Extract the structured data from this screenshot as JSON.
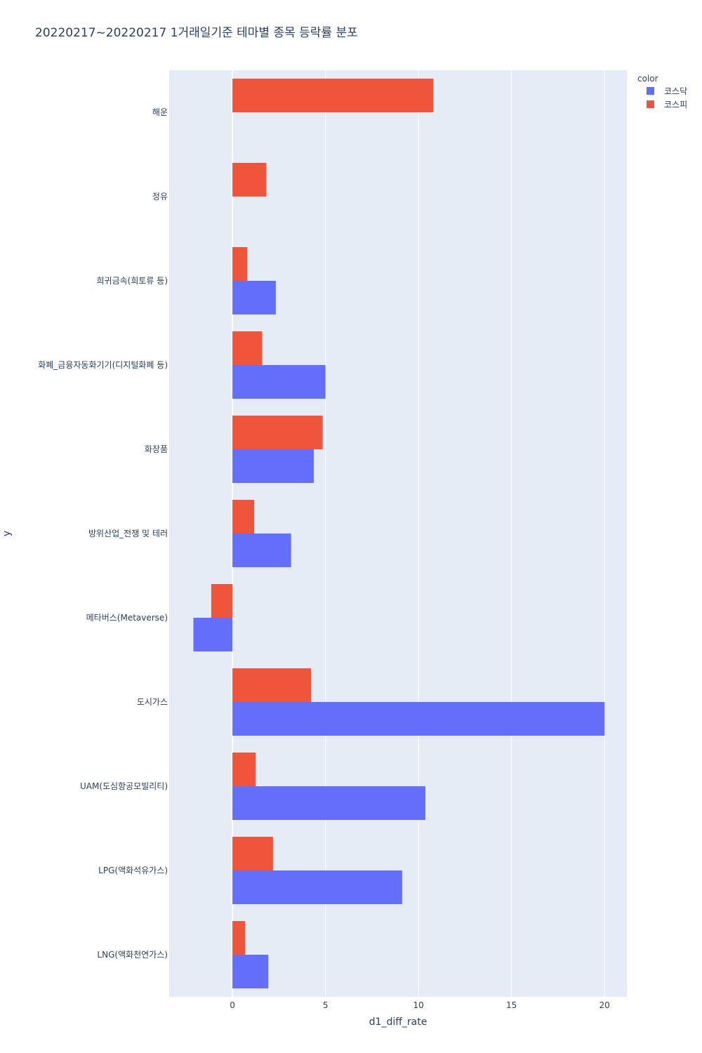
{
  "chart_data": {
    "type": "bar",
    "orientation": "horizontal",
    "barmode": "group",
    "title": "20220217~20220217 1거래일기준 테마별 종목 등락률 분포",
    "xlabel": "d1_diff_rate",
    "ylabel": "y",
    "xlim": [
      -3.4,
      21.2
    ],
    "xticks": [
      0,
      5,
      10,
      15,
      20
    ],
    "grid": true,
    "background": "#E5ECF6",
    "legend": {
      "title": "color",
      "placement": "top-right"
    },
    "categories": [
      "해운",
      "정유",
      "희귀금속(희토류 등)",
      "화폐_금융자동화기기(디지털화폐 등)",
      "화장품",
      "방위산업_전쟁 및 테러",
      "메타버스(Metaverse)",
      "도시가스",
      "UAM(도심항공모빌리티)",
      "LPG(액화석유가스)",
      "LNG(액화천연가스)"
    ],
    "series": [
      {
        "name": "코스닥",
        "color": "#636EFA",
        "values": [
          null,
          null,
          2.33,
          5.0,
          4.37,
          3.15,
          -2.1,
          20.0,
          10.37,
          9.12,
          1.93
        ]
      },
      {
        "name": "코스피",
        "color": "#EF553B",
        "values": [
          10.8,
          1.82,
          0.8,
          1.6,
          4.85,
          1.17,
          -1.14,
          4.22,
          1.25,
          2.18,
          0.68
        ]
      }
    ]
  }
}
